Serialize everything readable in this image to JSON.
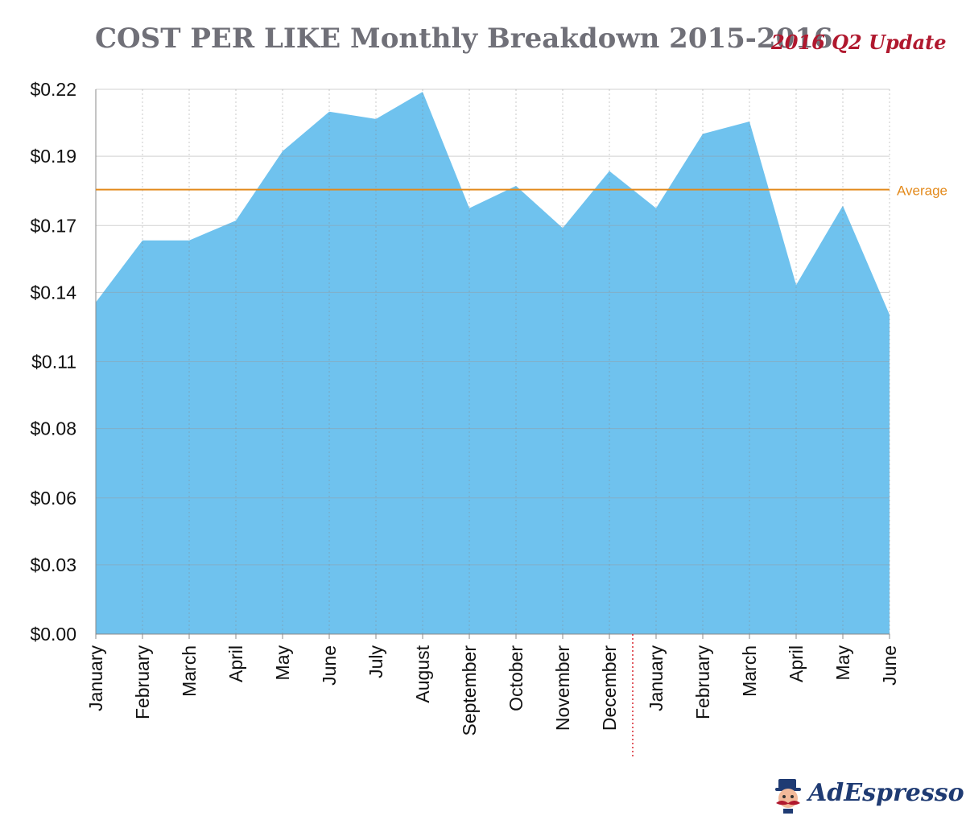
{
  "title": "COST PER LIKE Monthly Breakdown 2015-2016",
  "badge": "2016 Q2 Update",
  "brand": "AdEspresso",
  "colors": {
    "area": "#6fc2ee",
    "average": "#e38a1c",
    "title": "#707078",
    "badge": "#b0182e",
    "divider": "#d9252e",
    "brand": "#1f3b73"
  },
  "icons": {
    "mascot": "mustache-mascot-icon"
  },
  "chart_data": {
    "type": "area",
    "title": "COST PER LIKE Monthly Breakdown 2015-2016",
    "xlabel": "",
    "ylabel": "",
    "categories": [
      "January",
      "February",
      "March",
      "April",
      "May",
      "June",
      "July",
      "August",
      "September",
      "October",
      "November",
      "December",
      "January",
      "February",
      "March",
      "April",
      "May",
      "June"
    ],
    "values": [
      0.134,
      0.159,
      0.159,
      0.167,
      0.195,
      0.211,
      0.208,
      0.219,
      0.172,
      0.181,
      0.164,
      0.187,
      0.172,
      0.202,
      0.207,
      0.141,
      0.173,
      0.129
    ],
    "ylim": [
      0,
      0.22
    ],
    "yticks": [
      0,
      0.028,
      0.055,
      0.083,
      0.11,
      0.138,
      0.165,
      0.193,
      0.22
    ],
    "ytick_labels": [
      "$0.00",
      "$0.03",
      "$0.06",
      "$0.08",
      "$0.11",
      "$0.14",
      "$0.17",
      "$0.19",
      "$0.22"
    ],
    "average": {
      "label": "Average",
      "value": 0.1795
    },
    "divider_after_index": 11,
    "grid": true
  }
}
